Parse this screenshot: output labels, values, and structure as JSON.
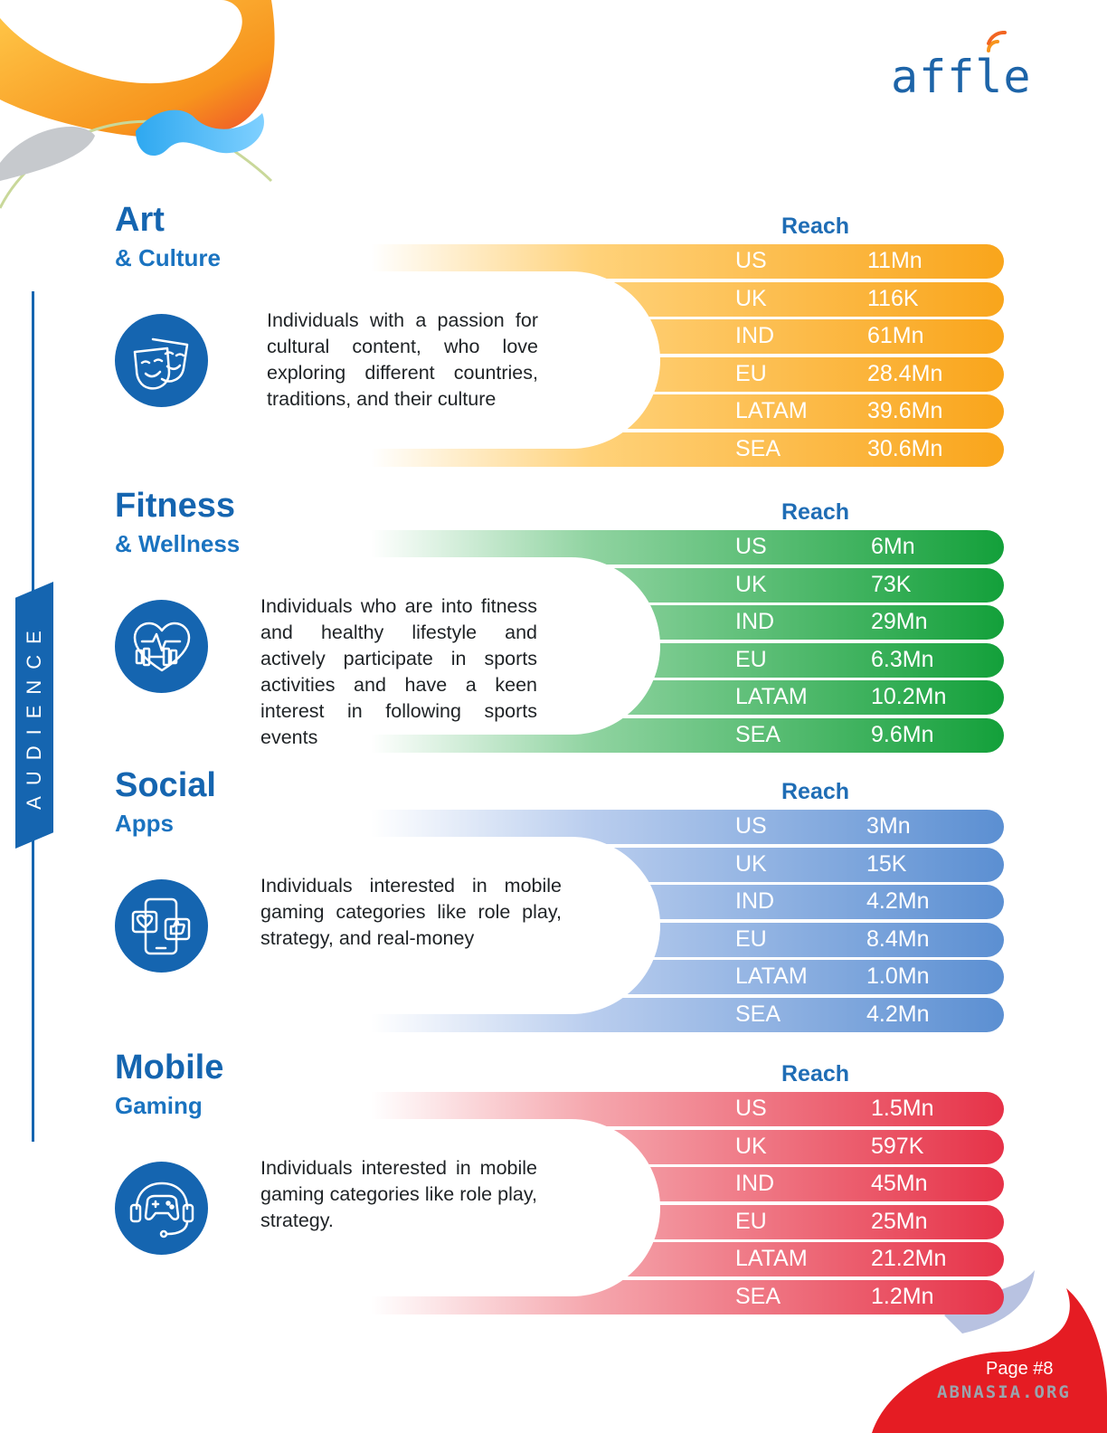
{
  "brand": {
    "logo_text": "affle"
  },
  "sidebar": {
    "label": "AUDIENCE"
  },
  "colors": {
    "brand_blue": "#1565b0",
    "art": "#f9a51b",
    "fitness": "#16a23c",
    "social": "#5b8fd2",
    "gaming": "#e63248"
  },
  "sections": [
    {
      "title": "Art",
      "subtitle": "& Culture",
      "reach_label": "Reach",
      "icon": "theater-masks-icon",
      "description": "Individuals with a passion for cultural content, who love exploring different countries, traditions, and their culture",
      "rows": [
        {
          "region": "US",
          "value": "11Mn"
        },
        {
          "region": "UK",
          "value": "116K"
        },
        {
          "region": "IND",
          "value": "61Mn"
        },
        {
          "region": "EU",
          "value": "28.4Mn"
        },
        {
          "region": "LATAM",
          "value": "39.6Mn"
        },
        {
          "region": "SEA",
          "value": "30.6Mn"
        }
      ]
    },
    {
      "title": "Fitness",
      "subtitle": "& Wellness",
      "reach_label": "Reach",
      "icon": "heart-dumbbell-icon",
      "description": "Individuals who are into fitness and healthy lifestyle and actively participate in sports activities and have a keen interest in following sports events",
      "rows": [
        {
          "region": "US",
          "value": "6Mn"
        },
        {
          "region": "UK",
          "value": "73K"
        },
        {
          "region": "IND",
          "value": "29Mn"
        },
        {
          "region": "EU",
          "value": "6.3Mn"
        },
        {
          "region": "LATAM",
          "value": "10.2Mn"
        },
        {
          "region": "SEA",
          "value": "9.6Mn"
        }
      ]
    },
    {
      "title": "Social",
      "subtitle": "Apps",
      "reach_label": "Reach",
      "icon": "social-phone-icon",
      "description": "Individuals interested in mobile gaming categories like role play, strategy, and real-money",
      "rows": [
        {
          "region": "US",
          "value": "3Mn"
        },
        {
          "region": "UK",
          "value": "15K"
        },
        {
          "region": "IND",
          "value": "4.2Mn"
        },
        {
          "region": "EU",
          "value": "8.4Mn"
        },
        {
          "region": "LATAM",
          "value": "1.0Mn"
        },
        {
          "region": "SEA",
          "value": "4.2Mn"
        }
      ]
    },
    {
      "title": "Mobile",
      "subtitle": "Gaming",
      "reach_label": "Reach",
      "icon": "gaming-headset-icon",
      "description": "Individuals interested in mobile gaming categories like role play, strategy.",
      "rows": [
        {
          "region": "US",
          "value": "1.5Mn"
        },
        {
          "region": "UK",
          "value": "597K"
        },
        {
          "region": "IND",
          "value": "45Mn"
        },
        {
          "region": "EU",
          "value": "25Mn"
        },
        {
          "region": "LATAM",
          "value": "21.2Mn"
        },
        {
          "region": "SEA",
          "value": "1.2Mn"
        }
      ]
    }
  ],
  "footer": {
    "page_label": "Page #8",
    "watermark": "ABNASIA.ORG"
  }
}
